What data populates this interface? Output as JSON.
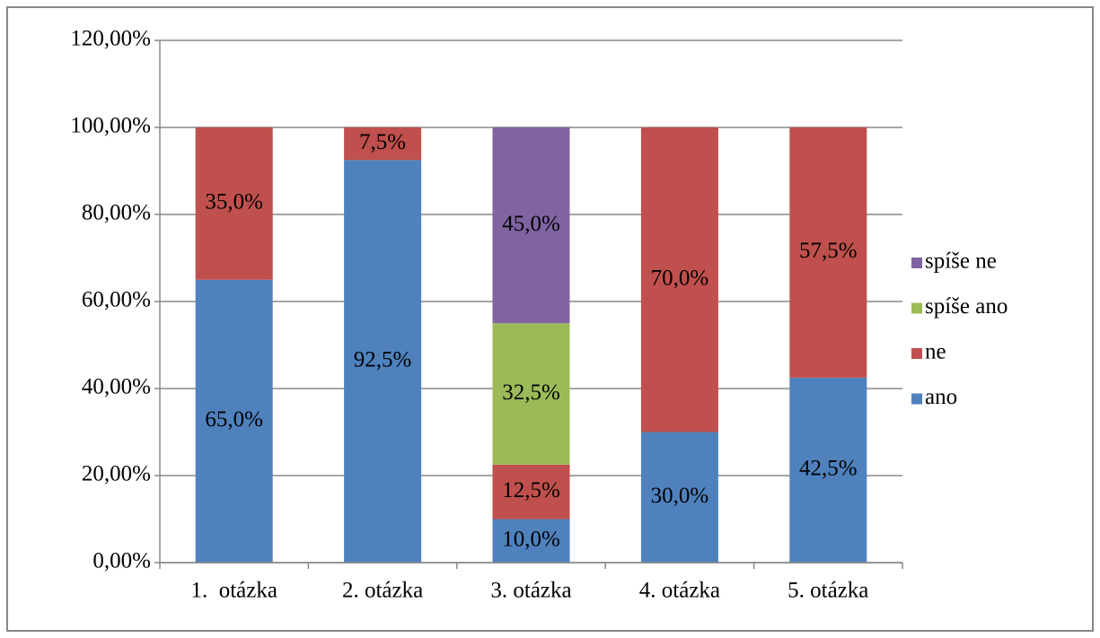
{
  "chart_data": {
    "type": "stacked_bar",
    "categories": [
      "1.  otázka",
      "2. otázka",
      "3. otázka",
      "4. otázka",
      "5. otázka"
    ],
    "series": [
      {
        "name": "ano",
        "color": "#4f81bd",
        "values": [
          65,
          92.5,
          10,
          30,
          42.5
        ],
        "value_labels": [
          "65,0%",
          "92,5%",
          "10,0%",
          "30,0%",
          "42,5%"
        ]
      },
      {
        "name": "ne",
        "color": "#c0504d",
        "values": [
          35,
          7.5,
          12.5,
          70,
          57.5
        ],
        "value_labels": [
          "35,0%",
          "7,5%",
          "12,5%",
          "70,0%",
          "57,5%"
        ]
      },
      {
        "name": "spíše ano",
        "color": "#9bbb59",
        "values": [
          null,
          null,
          32.5,
          null,
          null
        ],
        "value_labels": [
          null,
          null,
          "32,5%",
          null,
          null
        ]
      },
      {
        "name": "spíše ne",
        "color": "#8064a2",
        "values": [
          null,
          null,
          45,
          null,
          null
        ],
        "value_labels": [
          null,
          null,
          "45,0%",
          null,
          null
        ]
      }
    ],
    "ylim": [
      0,
      120
    ],
    "yticks": [
      {
        "value": 0,
        "label": "0,00%"
      },
      {
        "value": 20,
        "label": "20,00%"
      },
      {
        "value": 40,
        "label": "40,00%"
      },
      {
        "value": 60,
        "label": "60,00%"
      },
      {
        "value": 80,
        "label": "80,00%"
      },
      {
        "value": 100,
        "label": "100,00%"
      },
      {
        "value": 120,
        "label": "120,00%"
      }
    ],
    "grid": true,
    "legend": "right"
  }
}
